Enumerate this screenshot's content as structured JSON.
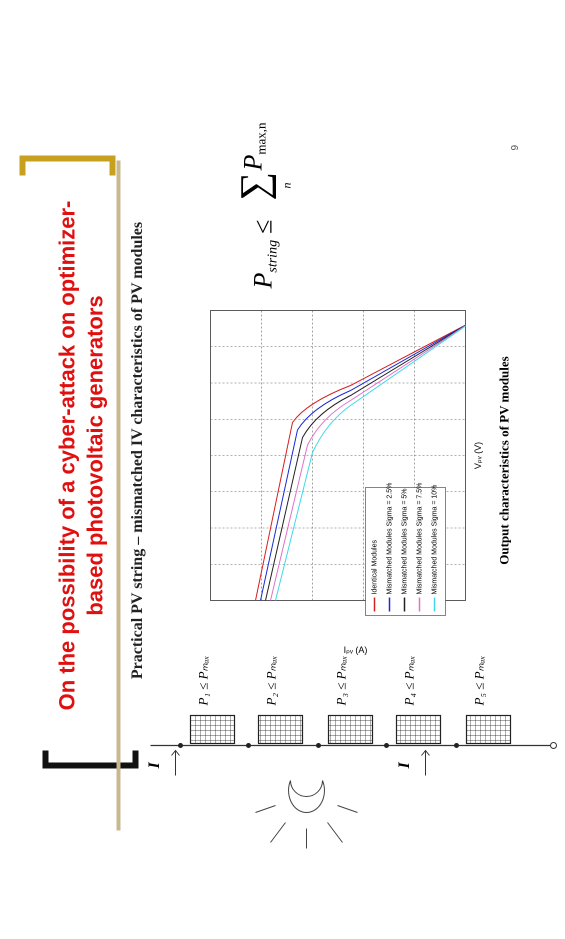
{
  "slide": {
    "title": [
      "On the possibility of a cyber-attack on optimizer-",
      "based photovoltaic generators"
    ],
    "subtitle": "Practical PV string – mismatched IV characteristics of PV modules",
    "current_label": "I",
    "modules": [
      "P₁ ≤ Pₘₐₓ",
      "P₂ ≤ Pₘₐₓ",
      "P₃ ≤ Pₘₐₓ",
      "P₄ ≤ Pₘₐₓ",
      "P₅ ≤ Pₘₐₓ"
    ],
    "chart": {
      "y_label": "Iₚᵥ (A)",
      "x_label": "Vₚᵥ (V)",
      "legend": [
        {
          "name": "Identical Modules",
          "color": "#d42020"
        },
        {
          "name": "Mismatched Modules Sigma = 2.5%",
          "color": "#1a2bd0"
        },
        {
          "name": "Mismatched Modules Sigma = 5%",
          "color": "#222222"
        },
        {
          "name": "Mismatched Modules Sigma = 7.5%",
          "color": "#e070c8"
        },
        {
          "name": "Mismatched Modules Sigma = 10%",
          "color": "#40d8e8"
        }
      ],
      "caption": "Output characteristics of PV modules"
    },
    "formula": {
      "lhs": "P",
      "lhs_sub": "string",
      "op": "≤",
      "sum": "∑",
      "sum_sub": "n",
      "rhs": "P",
      "rhs_sub": "max,n"
    },
    "page_number": "9"
  }
}
